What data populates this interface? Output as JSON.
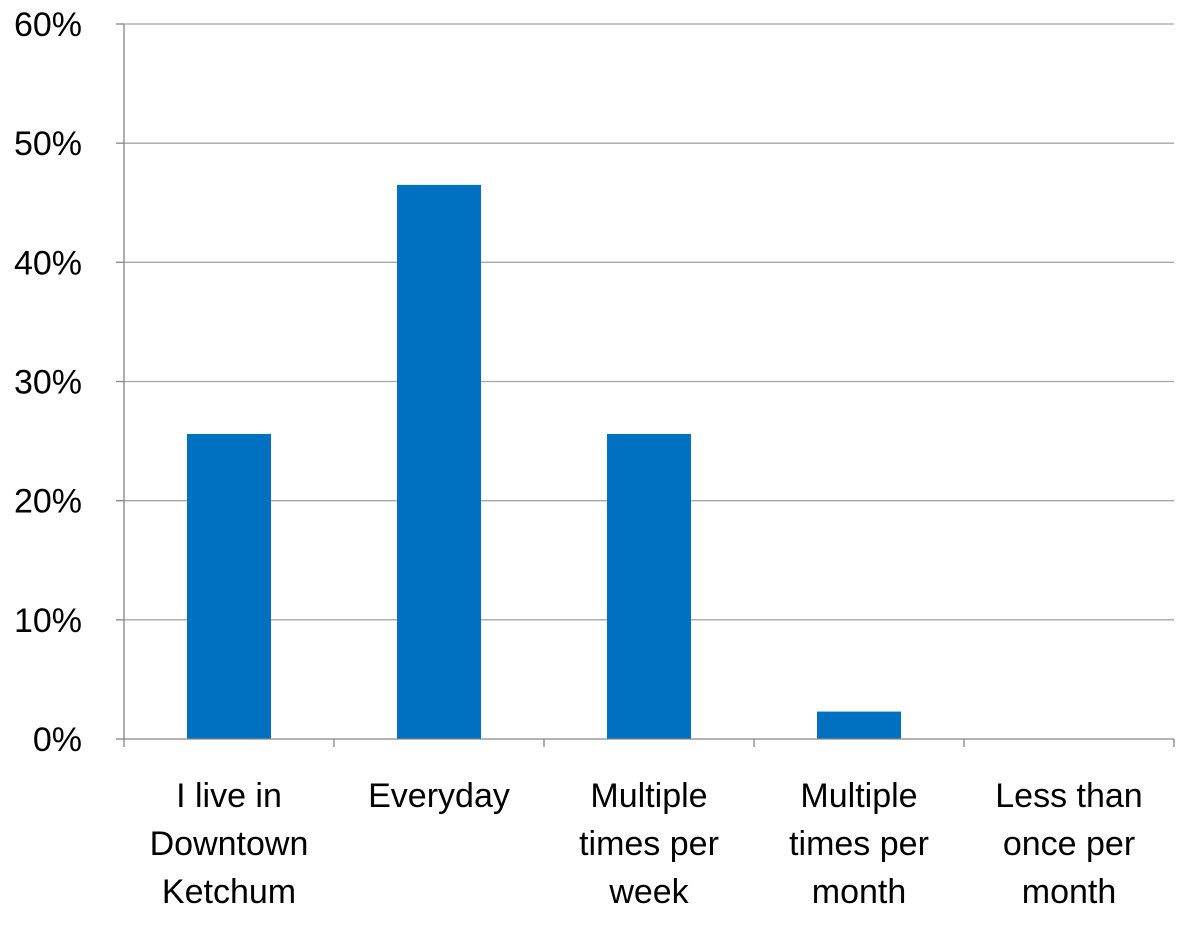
{
  "chart_data": {
    "type": "bar",
    "categories": [
      [
        "I live in",
        "Downtown",
        "Ketchum"
      ],
      [
        "Everyday"
      ],
      [
        "Multiple",
        "times per",
        "week"
      ],
      [
        "Multiple",
        "times per",
        "month"
      ],
      [
        "Less than",
        "once per",
        "month"
      ]
    ],
    "values": [
      25.6,
      46.5,
      25.6,
      2.3,
      0
    ],
    "ylim": [
      0,
      60
    ],
    "yticks": [
      "0%",
      "10%",
      "20%",
      "30%",
      "40%",
      "50%",
      "60%"
    ],
    "grid": true,
    "legend": "none",
    "colors": {
      "bar": "#0070C0",
      "grid": "#A6A6A6",
      "axis": "#868686"
    }
  }
}
